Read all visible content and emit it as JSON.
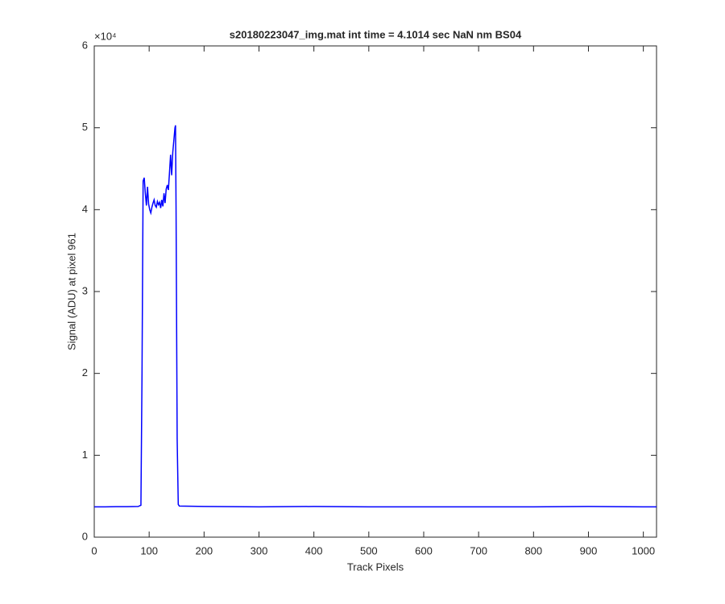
{
  "chart_data": {
    "type": "line",
    "title": "s20180223047_img.mat int time = 4.1014 sec  NaN nm BS04",
    "x_label": "Track Pixels",
    "y_label": "Signal (ADU) at pixel 961",
    "y_multiplier": "×10⁴",
    "xlim": [
      0,
      1024
    ],
    "xticks": [
      0,
      100,
      200,
      300,
      400,
      500,
      600,
      700,
      800,
      900,
      1000
    ],
    "ylim": [
      0,
      60000
    ],
    "yticks": [
      {
        "value": 0,
        "label": "0"
      },
      {
        "value": 10000,
        "label": "1"
      },
      {
        "value": 20000,
        "label": "2"
      },
      {
        "value": 30000,
        "label": "3"
      },
      {
        "value": 40000,
        "label": "4"
      },
      {
        "value": 50000,
        "label": "5"
      },
      {
        "value": 60000,
        "label": "6"
      }
    ],
    "grid": false,
    "x": [
      0,
      20,
      40,
      60,
      80,
      85,
      87,
      89,
      91,
      93,
      95,
      97,
      99,
      101,
      103,
      105,
      107,
      109,
      111,
      113,
      115,
      117,
      119,
      121,
      123,
      125,
      127,
      129,
      131,
      133,
      135,
      137,
      139,
      141,
      143,
      145,
      147,
      148,
      149,
      151,
      153,
      155,
      200,
      300,
      400,
      500,
      600,
      700,
      800,
      900,
      1000,
      1024
    ],
    "series": [
      {
        "color": "#0000ff",
        "values": [
          3700,
          3700,
          3720,
          3720,
          3750,
          3900,
          20000,
          43500,
          43900,
          42000,
          40500,
          42800,
          40700,
          40000,
          39600,
          40300,
          40800,
          41200,
          40500,
          40300,
          41000,
          40600,
          40900,
          40200,
          41200,
          40400,
          42000,
          40800,
          42500,
          43000,
          42400,
          44500,
          46700,
          44200,
          47000,
          48500,
          50000,
          50300,
          40000,
          12000,
          4000,
          3800,
          3750,
          3700,
          3750,
          3700,
          3700,
          3700,
          3700,
          3750,
          3700,
          3700
        ]
      }
    ]
  }
}
